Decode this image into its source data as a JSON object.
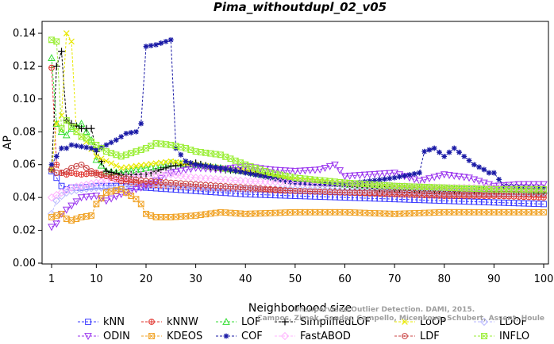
{
  "chart_data": {
    "type": "line",
    "title": "Pima_withoutdupl_02_v05",
    "xlabel": "Neighborhood size",
    "ylabel": "AP",
    "xlim": [
      1,
      100
    ],
    "ylim": [
      0,
      0.14
    ],
    "xticks": [
      1,
      10,
      20,
      30,
      40,
      50,
      60,
      70,
      80,
      90,
      100
    ],
    "yticks": [
      "0.00",
      "0.02",
      "0.04",
      "0.06",
      "0.08",
      "0.10",
      "0.12",
      "0.14"
    ],
    "grid": false,
    "legend_position": "bottom",
    "series": [
      {
        "name": "kNN",
        "color": "#3a3aff",
        "marker": "square",
        "points": [
          [
            1,
            0.056
          ],
          [
            2,
            0.052
          ],
          [
            3,
            0.047
          ],
          [
            4,
            0.045
          ],
          [
            5,
            0.046
          ],
          [
            7,
            0.046
          ],
          [
            10,
            0.047
          ],
          [
            15,
            0.047
          ],
          [
            20,
            0.046
          ],
          [
            25,
            0.045
          ],
          [
            30,
            0.044
          ],
          [
            40,
            0.042
          ],
          [
            50,
            0.041
          ],
          [
            60,
            0.04
          ],
          [
            70,
            0.039
          ],
          [
            80,
            0.038
          ],
          [
            90,
            0.037
          ],
          [
            100,
            0.036
          ]
        ]
      },
      {
        "name": "kNNW",
        "color": "#e0302a",
        "marker": "circle-plus",
        "points": [
          [
            1,
            0.119
          ],
          [
            2,
            0.06
          ],
          [
            3,
            0.055
          ],
          [
            4,
            0.054
          ],
          [
            5,
            0.055
          ],
          [
            7,
            0.054
          ],
          [
            10,
            0.055
          ],
          [
            15,
            0.05
          ],
          [
            20,
            0.048
          ],
          [
            25,
            0.047
          ],
          [
            30,
            0.046
          ],
          [
            40,
            0.045
          ],
          [
            50,
            0.044
          ],
          [
            60,
            0.043
          ],
          [
            70,
            0.042
          ],
          [
            80,
            0.041
          ],
          [
            90,
            0.041
          ],
          [
            100,
            0.04
          ]
        ]
      },
      {
        "name": "LOF",
        "color": "#33dd33",
        "marker": "triangle-up",
        "points": [
          [
            1,
            0.125
          ],
          [
            2,
            0.085
          ],
          [
            3,
            0.08
          ],
          [
            4,
            0.078
          ],
          [
            5,
            0.082
          ],
          [
            7,
            0.085
          ],
          [
            9,
            0.075
          ],
          [
            10,
            0.063
          ],
          [
            12,
            0.056
          ],
          [
            15,
            0.055
          ],
          [
            20,
            0.058
          ],
          [
            25,
            0.061
          ],
          [
            30,
            0.06
          ],
          [
            35,
            0.058
          ],
          [
            40,
            0.056
          ],
          [
            50,
            0.05
          ],
          [
            60,
            0.048
          ],
          [
            70,
            0.046
          ],
          [
            80,
            0.045
          ],
          [
            90,
            0.045
          ],
          [
            100,
            0.044
          ]
        ]
      },
      {
        "name": "SimplifiedLOF",
        "color": "#000000",
        "marker": "plus",
        "points": [
          [
            1,
            0.057
          ],
          [
            2,
            0.12
          ],
          [
            3,
            0.129
          ],
          [
            4,
            0.087
          ],
          [
            5,
            0.085
          ],
          [
            7,
            0.082
          ],
          [
            9,
            0.082
          ],
          [
            10,
            0.068
          ],
          [
            12,
            0.056
          ],
          [
            15,
            0.054
          ],
          [
            20,
            0.054
          ],
          [
            25,
            0.059
          ],
          [
            30,
            0.061
          ],
          [
            35,
            0.057
          ],
          [
            40,
            0.056
          ],
          [
            50,
            0.049
          ],
          [
            60,
            0.047
          ],
          [
            70,
            0.045
          ],
          [
            80,
            0.044
          ],
          [
            90,
            0.044
          ],
          [
            100,
            0.043
          ]
        ]
      },
      {
        "name": "LoOP",
        "color": "#e8e800",
        "marker": "cross",
        "points": [
          [
            1,
            0.057
          ],
          [
            2,
            0.085
          ],
          [
            3,
            0.09
          ],
          [
            4,
            0.14
          ],
          [
            5,
            0.135
          ],
          [
            6,
            0.08
          ],
          [
            8,
            0.074
          ],
          [
            10,
            0.065
          ],
          [
            15,
            0.058
          ],
          [
            20,
            0.06
          ],
          [
            25,
            0.062
          ],
          [
            30,
            0.06
          ],
          [
            40,
            0.056
          ],
          [
            50,
            0.051
          ],
          [
            60,
            0.049
          ],
          [
            70,
            0.047
          ],
          [
            80,
            0.046
          ],
          [
            90,
            0.045
          ],
          [
            100,
            0.045
          ]
        ]
      },
      {
        "name": "LDOF",
        "color": "#b8b8ff",
        "marker": "diamond",
        "points": [
          [
            1,
            0.03
          ],
          [
            2,
            0.038
          ],
          [
            3,
            0.041
          ],
          [
            4,
            0.043
          ],
          [
            5,
            0.044
          ],
          [
            7,
            0.045
          ],
          [
            10,
            0.046
          ],
          [
            15,
            0.046
          ],
          [
            20,
            0.047
          ],
          [
            25,
            0.047
          ],
          [
            30,
            0.046
          ],
          [
            40,
            0.045
          ],
          [
            50,
            0.045
          ],
          [
            60,
            0.044
          ],
          [
            70,
            0.044
          ],
          [
            80,
            0.043
          ],
          [
            90,
            0.043
          ],
          [
            100,
            0.043
          ]
        ]
      },
      {
        "name": "ODIN",
        "color": "#9933ee",
        "marker": "triangle-down",
        "points": [
          [
            1,
            0.022
          ],
          [
            2,
            0.024
          ],
          [
            3,
            0.03
          ],
          [
            5,
            0.035
          ],
          [
            7,
            0.04
          ],
          [
            10,
            0.041
          ],
          [
            12,
            0.038
          ],
          [
            15,
            0.042
          ],
          [
            20,
            0.047
          ],
          [
            25,
            0.055
          ],
          [
            30,
            0.058
          ],
          [
            35,
            0.057
          ],
          [
            40,
            0.059
          ],
          [
            45,
            0.057
          ],
          [
            50,
            0.056
          ],
          [
            55,
            0.057
          ],
          [
            58,
            0.06
          ],
          [
            60,
            0.053
          ],
          [
            65,
            0.054
          ],
          [
            70,
            0.055
          ],
          [
            75,
            0.05
          ],
          [
            80,
            0.054
          ],
          [
            85,
            0.052
          ],
          [
            90,
            0.047
          ],
          [
            95,
            0.048
          ],
          [
            100,
            0.048
          ]
        ]
      },
      {
        "name": "KDEOS",
        "color": "#f0a020",
        "marker": "square-x",
        "points": [
          [
            1,
            0.028
          ],
          [
            2,
            0.029
          ],
          [
            3,
            0.03
          ],
          [
            4,
            0.027
          ],
          [
            5,
            0.026
          ],
          [
            7,
            0.028
          ],
          [
            9,
            0.029
          ],
          [
            10,
            0.036
          ],
          [
            12,
            0.043
          ],
          [
            15,
            0.045
          ],
          [
            18,
            0.039
          ],
          [
            19,
            0.036
          ],
          [
            20,
            0.03
          ],
          [
            22,
            0.028
          ],
          [
            25,
            0.028
          ],
          [
            30,
            0.029
          ],
          [
            35,
            0.031
          ],
          [
            40,
            0.03
          ],
          [
            50,
            0.031
          ],
          [
            60,
            0.031
          ],
          [
            70,
            0.03
          ],
          [
            80,
            0.031
          ],
          [
            90,
            0.031
          ],
          [
            100,
            0.031
          ]
        ]
      },
      {
        "name": "COF",
        "color": "#1a1aa6",
        "marker": "asterisk",
        "points": [
          [
            1,
            0.06
          ],
          [
            2,
            0.065
          ],
          [
            3,
            0.07
          ],
          [
            4,
            0.07
          ],
          [
            5,
            0.072
          ],
          [
            7,
            0.071
          ],
          [
            9,
            0.07
          ],
          [
            10,
            0.069
          ],
          [
            12,
            0.072
          ],
          [
            14,
            0.075
          ],
          [
            16,
            0.079
          ],
          [
            18,
            0.08
          ],
          [
            19,
            0.085
          ],
          [
            20,
            0.132
          ],
          [
            22,
            0.133
          ],
          [
            24,
            0.135
          ],
          [
            25,
            0.136
          ],
          [
            26,
            0.07
          ],
          [
            28,
            0.062
          ],
          [
            30,
            0.06
          ],
          [
            35,
            0.058
          ],
          [
            40,
            0.055
          ],
          [
            45,
            0.052
          ],
          [
            50,
            0.049
          ],
          [
            55,
            0.048
          ],
          [
            60,
            0.048
          ],
          [
            65,
            0.05
          ],
          [
            70,
            0.052
          ],
          [
            75,
            0.055
          ],
          [
            76,
            0.068
          ],
          [
            78,
            0.07
          ],
          [
            80,
            0.065
          ],
          [
            82,
            0.07
          ],
          [
            84,
            0.065
          ],
          [
            86,
            0.06
          ],
          [
            88,
            0.057
          ],
          [
            89,
            0.055
          ],
          [
            90,
            0.055
          ],
          [
            92,
            0.047
          ],
          [
            100,
            0.046
          ]
        ]
      },
      {
        "name": "FastABOD",
        "color": "#ffb3ff",
        "marker": "diamond",
        "points": [
          [
            1,
            0.04
          ],
          [
            3,
            0.043
          ],
          [
            5,
            0.046
          ],
          [
            10,
            0.049
          ],
          [
            15,
            0.052
          ],
          [
            20,
            0.054
          ],
          [
            25,
            0.054
          ],
          [
            30,
            0.052
          ],
          [
            40,
            0.05
          ],
          [
            50,
            0.049
          ],
          [
            60,
            0.048
          ],
          [
            70,
            0.047
          ],
          [
            80,
            0.046
          ],
          [
            90,
            0.046
          ],
          [
            100,
            0.046
          ]
        ]
      },
      {
        "name": "LDF",
        "color": "#c84040",
        "marker": "circle-dot",
        "points": [
          [
            1,
            0.057
          ],
          [
            2,
            0.055
          ],
          [
            3,
            0.055
          ],
          [
            4,
            0.056
          ],
          [
            5,
            0.058
          ],
          [
            7,
            0.06
          ],
          [
            10,
            0.054
          ],
          [
            15,
            0.052
          ],
          [
            20,
            0.05
          ],
          [
            25,
            0.049
          ],
          [
            30,
            0.048
          ],
          [
            40,
            0.046
          ],
          [
            50,
            0.044
          ],
          [
            60,
            0.043
          ],
          [
            70,
            0.043
          ],
          [
            80,
            0.042
          ],
          [
            90,
            0.042
          ],
          [
            100,
            0.042
          ]
        ]
      },
      {
        "name": "INFLO",
        "color": "#99ee33",
        "marker": "hourglass",
        "points": [
          [
            1,
            0.136
          ],
          [
            2,
            0.135
          ],
          [
            3,
            0.082
          ],
          [
            4,
            0.087
          ],
          [
            5,
            0.083
          ],
          [
            6,
            0.08
          ],
          [
            7,
            0.077
          ],
          [
            8,
            0.076
          ],
          [
            10,
            0.072
          ],
          [
            12,
            0.068
          ],
          [
            15,
            0.065
          ],
          [
            20,
            0.07
          ],
          [
            22,
            0.073
          ],
          [
            25,
            0.072
          ],
          [
            28,
            0.07
          ],
          [
            30,
            0.068
          ],
          [
            35,
            0.066
          ],
          [
            40,
            0.06
          ],
          [
            45,
            0.055
          ],
          [
            50,
            0.052
          ],
          [
            60,
            0.049
          ],
          [
            70,
            0.047
          ],
          [
            80,
            0.046
          ],
          [
            90,
            0.045
          ],
          [
            100,
            0.045
          ]
        ]
      }
    ]
  },
  "watermark": {
    "line1": "Unsupervised Outlier Detection. DAMI, 2015.",
    "line2": "Campos, Zimek, Sander, Campello, Micenkova, Schubert, Assent, Houle"
  }
}
